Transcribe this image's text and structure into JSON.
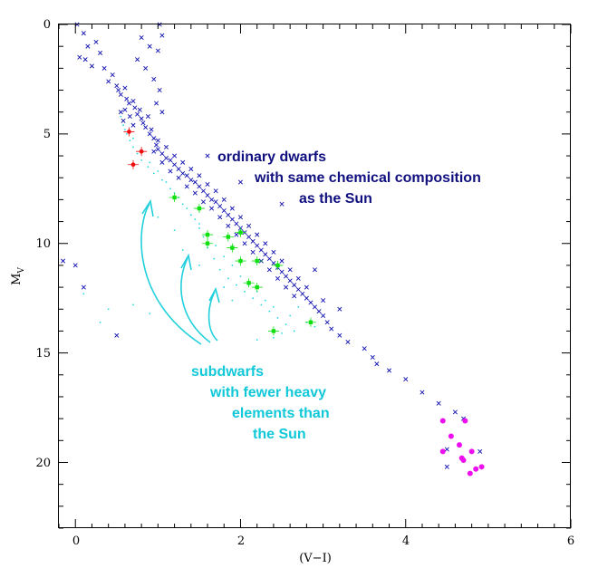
{
  "chart_data": {
    "type": "scatter",
    "title": "",
    "xlabel": "(V−I)",
    "ylabel_main": "M",
    "ylabel_sub": "V",
    "xlim": [
      -0.2,
      6
    ],
    "ylim": [
      23,
      0
    ],
    "y_inverted": true,
    "x_ticks": [
      0,
      2,
      4,
      6
    ],
    "y_ticks": [
      0,
      5,
      10,
      15,
      20
    ],
    "grid": false,
    "colors": {
      "ordinary": "#1010b0",
      "ordinary_text": "#101080",
      "subdwarf": "#20d8e0",
      "subdwarf_text": "#10c8d8",
      "red": "#ee1010",
      "green": "#10e010",
      "magenta": "#ee10ee"
    },
    "annotations": {
      "ordinary_lines": [
        "ordinary dwarfs",
        "with same chemical composition",
        "as the Sun"
      ],
      "subdwarf_lines": [
        "subdwarfs",
        "with fewer heavy",
        "elements than",
        "the Sun"
      ]
    },
    "series": [
      {
        "id": "ordinary-dwarfs",
        "marker": "x",
        "color": "#1010b0",
        "points": [
          [
            0.02,
            0.0
          ],
          [
            0.1,
            0.4
          ],
          [
            0.15,
            1.0
          ],
          [
            0.25,
            0.8
          ],
          [
            0.3,
            1.3
          ],
          [
            0.05,
            1.5
          ],
          [
            0.12,
            1.6
          ],
          [
            0.2,
            1.9
          ],
          [
            0.35,
            2.0
          ],
          [
            0.45,
            2.3
          ],
          [
            0.4,
            2.6
          ],
          [
            0.5,
            2.8
          ],
          [
            0.52,
            3.0
          ],
          [
            0.55,
            3.2
          ],
          [
            0.6,
            2.9
          ],
          [
            0.62,
            3.4
          ],
          [
            0.65,
            3.6
          ],
          [
            0.7,
            3.5
          ],
          [
            0.72,
            3.8
          ],
          [
            0.75,
            4.1
          ],
          [
            0.78,
            3.9
          ],
          [
            0.8,
            4.3
          ],
          [
            0.82,
            4.5
          ],
          [
            0.85,
            4.7
          ],
          [
            0.88,
            4.2
          ],
          [
            0.9,
            5.0
          ],
          [
            0.92,
            4.8
          ],
          [
            0.95,
            5.2
          ],
          [
            0.6,
            3.9
          ],
          [
            0.66,
            4.2
          ],
          [
            0.7,
            4.6
          ],
          [
            0.55,
            4.0
          ],
          [
            0.58,
            4.4
          ],
          [
            0.98,
            5.5
          ],
          [
            1.0,
            5.7
          ],
          [
            1.05,
            5.9
          ],
          [
            1.1,
            6.1
          ],
          [
            1.15,
            6.2
          ],
          [
            1.2,
            6.4
          ],
          [
            1.25,
            6.6
          ],
          [
            1.3,
            6.8
          ],
          [
            1.35,
            6.9
          ],
          [
            1.4,
            7.1
          ],
          [
            1.45,
            7.2
          ],
          [
            1.5,
            7.4
          ],
          [
            1.55,
            7.6
          ],
          [
            1.6,
            7.8
          ],
          [
            1.65,
            8.0
          ],
          [
            1.7,
            8.1
          ],
          [
            1.75,
            8.3
          ],
          [
            1.8,
            8.5
          ],
          [
            1.85,
            8.7
          ],
          [
            1.9,
            8.9
          ],
          [
            1.95,
            9.1
          ],
          [
            2.0,
            9.3
          ],
          [
            2.05,
            9.5
          ],
          [
            2.1,
            9.7
          ],
          [
            2.15,
            9.9
          ],
          [
            2.2,
            10.1
          ],
          [
            2.25,
            10.3
          ],
          [
            2.3,
            10.5
          ],
          [
            2.35,
            10.7
          ],
          [
            2.4,
            10.9
          ],
          [
            2.45,
            11.1
          ],
          [
            2.5,
            11.3
          ],
          [
            2.55,
            11.5
          ],
          [
            2.6,
            11.7
          ],
          [
            2.65,
            11.9
          ],
          [
            2.7,
            12.1
          ],
          [
            2.75,
            12.3
          ],
          [
            2.8,
            12.5
          ],
          [
            2.85,
            12.7
          ],
          [
            2.9,
            12.9
          ],
          [
            0.95,
            5.8
          ],
          [
            1.05,
            6.3
          ],
          [
            1.15,
            6.7
          ],
          [
            1.25,
            7.0
          ],
          [
            1.35,
            7.4
          ],
          [
            1.45,
            7.7
          ],
          [
            1.55,
            8.1
          ],
          [
            1.65,
            8.4
          ],
          [
            1.75,
            8.8
          ],
          [
            1.85,
            9.2
          ],
          [
            1.95,
            9.6
          ],
          [
            2.05,
            10.0
          ],
          [
            2.15,
            10.4
          ],
          [
            2.25,
            10.8
          ],
          [
            2.35,
            11.2
          ],
          [
            2.45,
            11.6
          ],
          [
            2.55,
            12.0
          ],
          [
            2.65,
            12.4
          ],
          [
            1.0,
            5.3
          ],
          [
            1.1,
            5.6
          ],
          [
            1.2,
            6.0
          ],
          [
            1.3,
            6.3
          ],
          [
            1.4,
            6.6
          ],
          [
            1.5,
            6.9
          ],
          [
            1.6,
            7.3
          ],
          [
            1.7,
            7.6
          ],
          [
            1.8,
            8.0
          ],
          [
            1.9,
            8.4
          ],
          [
            2.0,
            8.8
          ],
          [
            2.1,
            9.2
          ],
          [
            2.2,
            9.6
          ],
          [
            2.3,
            10.0
          ],
          [
            2.4,
            10.4
          ],
          [
            2.5,
            10.8
          ],
          [
            2.6,
            11.2
          ],
          [
            2.7,
            11.6
          ],
          [
            2.8,
            12.0
          ],
          [
            1.02,
            3.0
          ],
          [
            0.95,
            2.5
          ],
          [
            1.0,
            1.2
          ],
          [
            1.05,
            0.5
          ],
          [
            1.02,
            0.0
          ],
          [
            0.9,
            1.0
          ],
          [
            0.85,
            2.0
          ],
          [
            0.98,
            3.6
          ],
          [
            1.05,
            4.0
          ],
          [
            0.8,
            0.6
          ],
          [
            0.75,
            1.6
          ],
          [
            2.95,
            13.1
          ],
          [
            3.0,
            13.3
          ],
          [
            3.05,
            13.6
          ],
          [
            3.1,
            13.9
          ],
          [
            3.2,
            14.2
          ],
          [
            3.3,
            14.5
          ],
          [
            3.5,
            14.8
          ],
          [
            3.6,
            15.2
          ],
          [
            3.65,
            15.5
          ],
          [
            3.8,
            15.8
          ],
          [
            4.0,
            16.2
          ],
          [
            4.2,
            16.8
          ],
          [
            4.4,
            17.3
          ],
          [
            4.6,
            17.7
          ],
          [
            4.7,
            18.0
          ],
          [
            4.5,
            19.4
          ],
          [
            4.5,
            20.2
          ],
          [
            4.9,
            19.5
          ],
          [
            2.0,
            7.2
          ],
          [
            2.5,
            8.2
          ],
          [
            1.6,
            6.0
          ],
          [
            3.0,
            12.6
          ],
          [
            2.9,
            11.2
          ],
          [
            3.2,
            13.0
          ],
          [
            0.0,
            11.0
          ],
          [
            0.1,
            12.0
          ],
          [
            0.5,
            14.2
          ],
          [
            -0.15,
            10.8
          ]
        ]
      },
      {
        "id": "subdwarfs",
        "marker": "dot",
        "color": "#20d8e0",
        "points": [
          [
            0.55,
            4.2
          ],
          [
            0.58,
            4.6
          ],
          [
            0.62,
            5.0
          ],
          [
            0.66,
            5.3
          ],
          [
            0.7,
            5.6
          ],
          [
            0.75,
            5.9
          ],
          [
            0.8,
            6.2
          ],
          [
            0.88,
            6.5
          ],
          [
            0.95,
            6.8
          ],
          [
            1.05,
            7.1
          ],
          [
            1.15,
            7.5
          ],
          [
            1.25,
            7.9
          ],
          [
            1.35,
            8.4
          ],
          [
            1.45,
            8.9
          ],
          [
            1.5,
            9.3
          ],
          [
            1.55,
            9.7
          ],
          [
            1.6,
            10.2
          ],
          [
            1.68,
            10.7
          ],
          [
            1.75,
            11.2
          ],
          [
            1.85,
            11.6
          ],
          [
            1.95,
            11.9
          ],
          [
            2.05,
            12.2
          ],
          [
            2.15,
            12.5
          ],
          [
            2.25,
            12.8
          ],
          [
            2.35,
            13.1
          ],
          [
            2.45,
            13.4
          ],
          [
            2.55,
            13.7
          ],
          [
            2.65,
            14.0
          ],
          [
            2.4,
            14.3
          ],
          [
            2.5,
            14.1
          ],
          [
            0.6,
            4.8
          ],
          [
            0.7,
            5.2
          ],
          [
            0.8,
            5.8
          ],
          [
            0.9,
            6.3
          ],
          [
            1.0,
            6.7
          ],
          [
            1.1,
            7.2
          ],
          [
            1.2,
            7.7
          ],
          [
            1.3,
            8.2
          ],
          [
            1.4,
            8.7
          ],
          [
            1.5,
            9.1
          ],
          [
            1.6,
            9.6
          ],
          [
            1.7,
            10.1
          ],
          [
            1.8,
            10.6
          ],
          [
            1.9,
            11.0
          ],
          [
            2.0,
            11.5
          ],
          [
            2.1,
            11.9
          ],
          [
            2.2,
            12.2
          ],
          [
            2.3,
            12.6
          ],
          [
            2.4,
            12.9
          ],
          [
            2.6,
            13.3
          ],
          [
            2.8,
            13.6
          ],
          [
            2.9,
            13.8
          ],
          [
            1.0,
            8.8
          ],
          [
            1.2,
            9.4
          ],
          [
            1.3,
            10.3
          ],
          [
            1.5,
            11.0
          ],
          [
            2.2,
            14.4
          ],
          [
            2.7,
            12.9
          ],
          [
            0.4,
            13.0
          ],
          [
            0.3,
            13.6
          ],
          [
            0.7,
            12.8
          ],
          [
            0.9,
            13.2
          ],
          [
            0.1,
            12.3
          ],
          [
            1.8,
            12.0
          ],
          [
            1.9,
            12.6
          ]
        ]
      },
      {
        "id": "red-points",
        "marker": "errdot",
        "color": "#ee1010",
        "points": [
          [
            0.7,
            6.4
          ],
          [
            0.8,
            5.8
          ],
          [
            0.65,
            4.9
          ]
        ]
      },
      {
        "id": "green-points",
        "marker": "errsquare",
        "color": "#10e010",
        "points": [
          [
            1.2,
            7.9
          ],
          [
            1.5,
            8.4
          ],
          [
            1.6,
            9.6
          ],
          [
            1.6,
            10.0
          ],
          [
            1.85,
            9.7
          ],
          [
            1.9,
            10.2
          ],
          [
            2.0,
            10.8
          ],
          [
            2.0,
            9.5
          ],
          [
            2.1,
            11.8
          ],
          [
            2.2,
            12.0
          ],
          [
            2.2,
            10.8
          ],
          [
            2.45,
            11.0
          ],
          [
            2.4,
            14.0
          ],
          [
            2.85,
            13.6
          ]
        ]
      },
      {
        "id": "magenta-points",
        "marker": "dot-large",
        "color": "#ee10ee",
        "points": [
          [
            4.45,
            18.1
          ],
          [
            4.72,
            18.1
          ],
          [
            4.55,
            18.8
          ],
          [
            4.65,
            19.2
          ],
          [
            4.45,
            19.5
          ],
          [
            4.8,
            19.5
          ],
          [
            4.7,
            19.9
          ],
          [
            4.68,
            19.8
          ],
          [
            4.85,
            20.3
          ],
          [
            4.92,
            20.2
          ],
          [
            4.78,
            20.5
          ]
        ]
      }
    ]
  }
}
